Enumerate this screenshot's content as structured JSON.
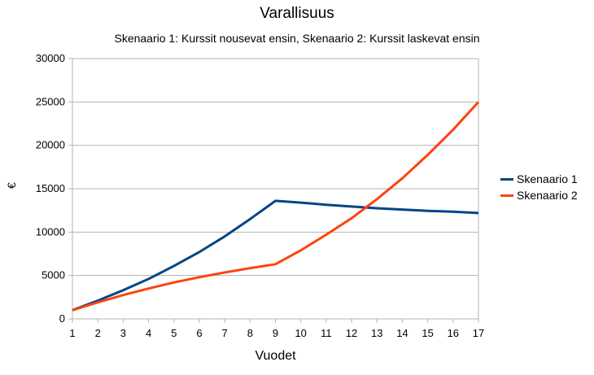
{
  "chart_data": {
    "type": "line",
    "title": "Varallisuus",
    "subtitle": "Skenaario 1: Kurssit nousevat ensin, Skenaario 2: Kurssit laskevat ensin",
    "xlabel": "Vuodet",
    "ylabel": "€",
    "x": [
      1,
      2,
      3,
      4,
      5,
      6,
      7,
      8,
      9,
      10,
      11,
      12,
      13,
      14,
      15,
      16,
      17
    ],
    "ylim": [
      0,
      30000
    ],
    "yticks": [
      0,
      5000,
      10000,
      15000,
      20000,
      25000,
      30000
    ],
    "grid": true,
    "legend_position": "right",
    "series": [
      {
        "name": "Skenaario 1",
        "color": "#004586",
        "values": [
          1000,
          2100,
          3300,
          4600,
          6100,
          7700,
          9500,
          11500,
          13600,
          13400,
          13150,
          12950,
          12750,
          12600,
          12450,
          12350,
          12200
        ]
      },
      {
        "name": "Skenaario 2",
        "color": "#ff420e",
        "values": [
          1000,
          1900,
          2750,
          3500,
          4200,
          4800,
          5350,
          5850,
          6300,
          7900,
          9700,
          11600,
          13800,
          16200,
          18900,
          21800,
          25000
        ]
      }
    ]
  }
}
